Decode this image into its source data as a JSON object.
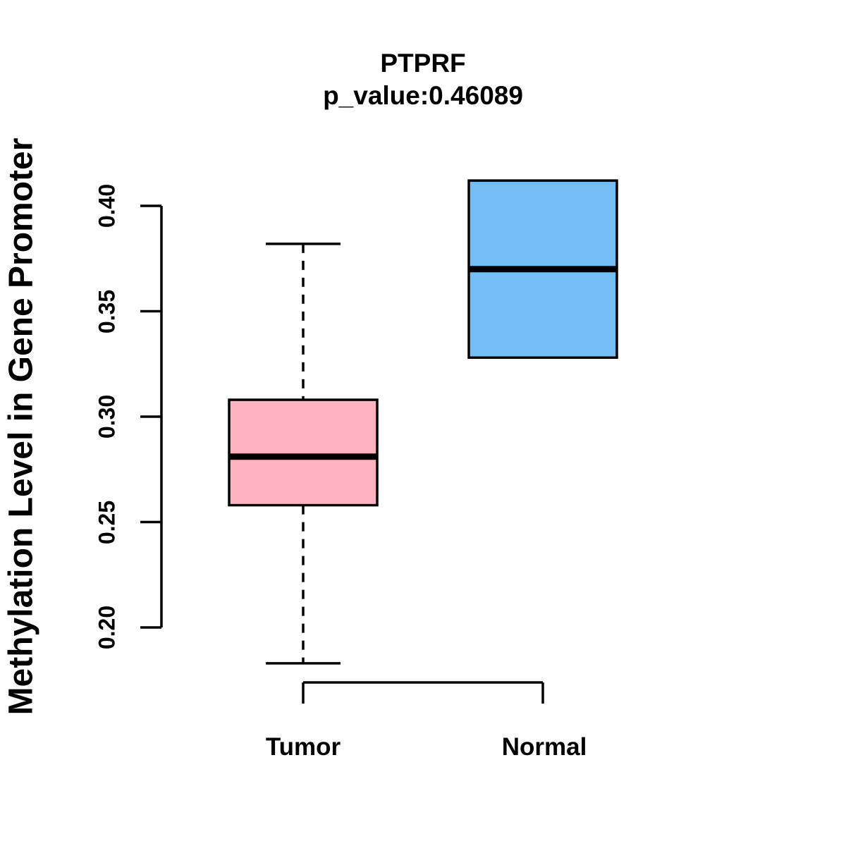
{
  "chart_data": {
    "type": "boxplot",
    "title": "PTPRF",
    "subtitle": "p_value:0.46089",
    "ylabel": "Methylation Level in Gene Promoter",
    "xlabel": "",
    "categories": [
      "Tumor",
      "Normal"
    ],
    "ytick_labels": [
      "0.20",
      "0.25",
      "0.30",
      "0.35",
      "0.40"
    ],
    "yticks": [
      0.2,
      0.25,
      0.3,
      0.35,
      0.4
    ],
    "ylim": [
      0.2,
      0.4
    ],
    "grid": false,
    "legend": "none",
    "series": [
      {
        "name": "Tumor",
        "whisker_low": 0.183,
        "q1": 0.258,
        "median": 0.281,
        "q3": 0.308,
        "whisker_high": 0.382,
        "has_whiskers": true,
        "fill_color": "#FFB3C1"
      },
      {
        "name": "Normal",
        "whisker_low": 0.328,
        "q1": 0.328,
        "median": 0.37,
        "q3": 0.412,
        "whisker_high": 0.412,
        "has_whiskers": false,
        "fill_color": "#74BEF5"
      }
    ],
    "colors": {
      "stroke": "#000000",
      "background": "#FFFFFF"
    }
  }
}
